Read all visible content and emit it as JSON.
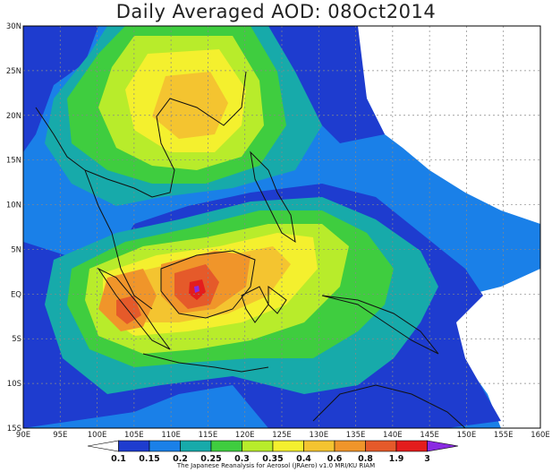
{
  "title": "Daily Averaged AOD: 08Oct2014",
  "credit": "The Japanese Reanalysis for Aerosol (JRAero) v1.0 MRI/KU RIAM",
  "lon_labels": [
    "90E",
    "95E",
    "100E",
    "105E",
    "110E",
    "115E",
    "120E",
    "125E",
    "130E",
    "135E",
    "140E",
    "145E",
    "150E",
    "155E",
    "160E"
  ],
  "lat_labels": [
    "30N",
    "25N",
    "20N",
    "15N",
    "10N",
    "5N",
    "EQ",
    "5S",
    "10S",
    "15S"
  ],
  "colorbar": {
    "labels": [
      "0.1",
      "0.15",
      "0.2",
      "0.25",
      "0.3",
      "0.35",
      "0.4",
      "0.6",
      "0.8",
      "1.9",
      "3"
    ],
    "colors": [
      "#ffffff",
      "#1e3ccf",
      "#1a80e8",
      "#17aaaa",
      "#3fcd3f",
      "#b8ec2b",
      "#f4f02e",
      "#f4c430",
      "#f0952a",
      "#e55a2a",
      "#e41d1d",
      "#8a2be2"
    ]
  }
}
